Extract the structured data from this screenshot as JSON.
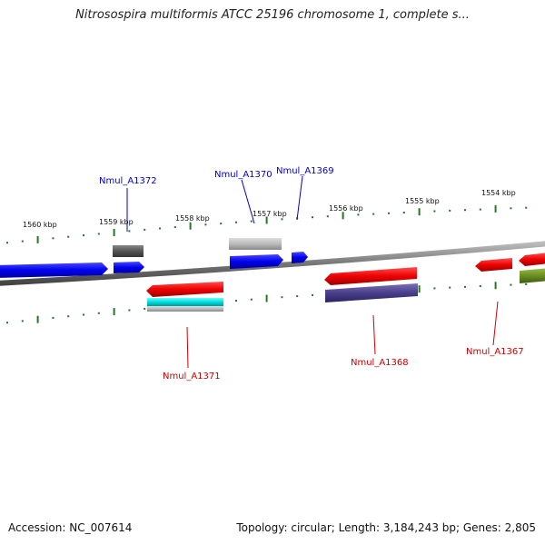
{
  "title": "Nitrosospira multiformis ATCC 25196 chromosome 1, complete s...",
  "footer": {
    "accession": "Accession: NC_007614",
    "summary": "Topology: circular; Length: 3,184,243 bp; Genes: 2,805"
  },
  "scale_labels": [
    "1560 kbp",
    "1559 kbp",
    "1558 kbp",
    "1557 kbp",
    "1556 kbp",
    "1555 kbp",
    "1554 kbp"
  ],
  "gene_labels": [
    {
      "name": "Nmul_A1372",
      "color": "#0000cc"
    },
    {
      "name": "Nmul_A1370",
      "color": "#0000cc"
    },
    {
      "name": "Nmul_A1369",
      "color": "#0000cc"
    },
    {
      "name": "Nmul_A1371",
      "color": "#cc0000"
    },
    {
      "name": "Nmul_A1368",
      "color": "#cc0000"
    },
    {
      "name": "Nmul_A1367",
      "color": "#cc0000"
    }
  ],
  "colors": {
    "backbone": "#888888",
    "tick": "#227722",
    "forward_gene": "#0000ee",
    "reverse_gene": "#ee0000",
    "feature_gray": "#bbbbbb",
    "feature_dark_gray": "#555555",
    "feature_cyan": "#00dddd",
    "feature_slate": "#4a3f8a",
    "feature_olive": "#6b8e23"
  }
}
